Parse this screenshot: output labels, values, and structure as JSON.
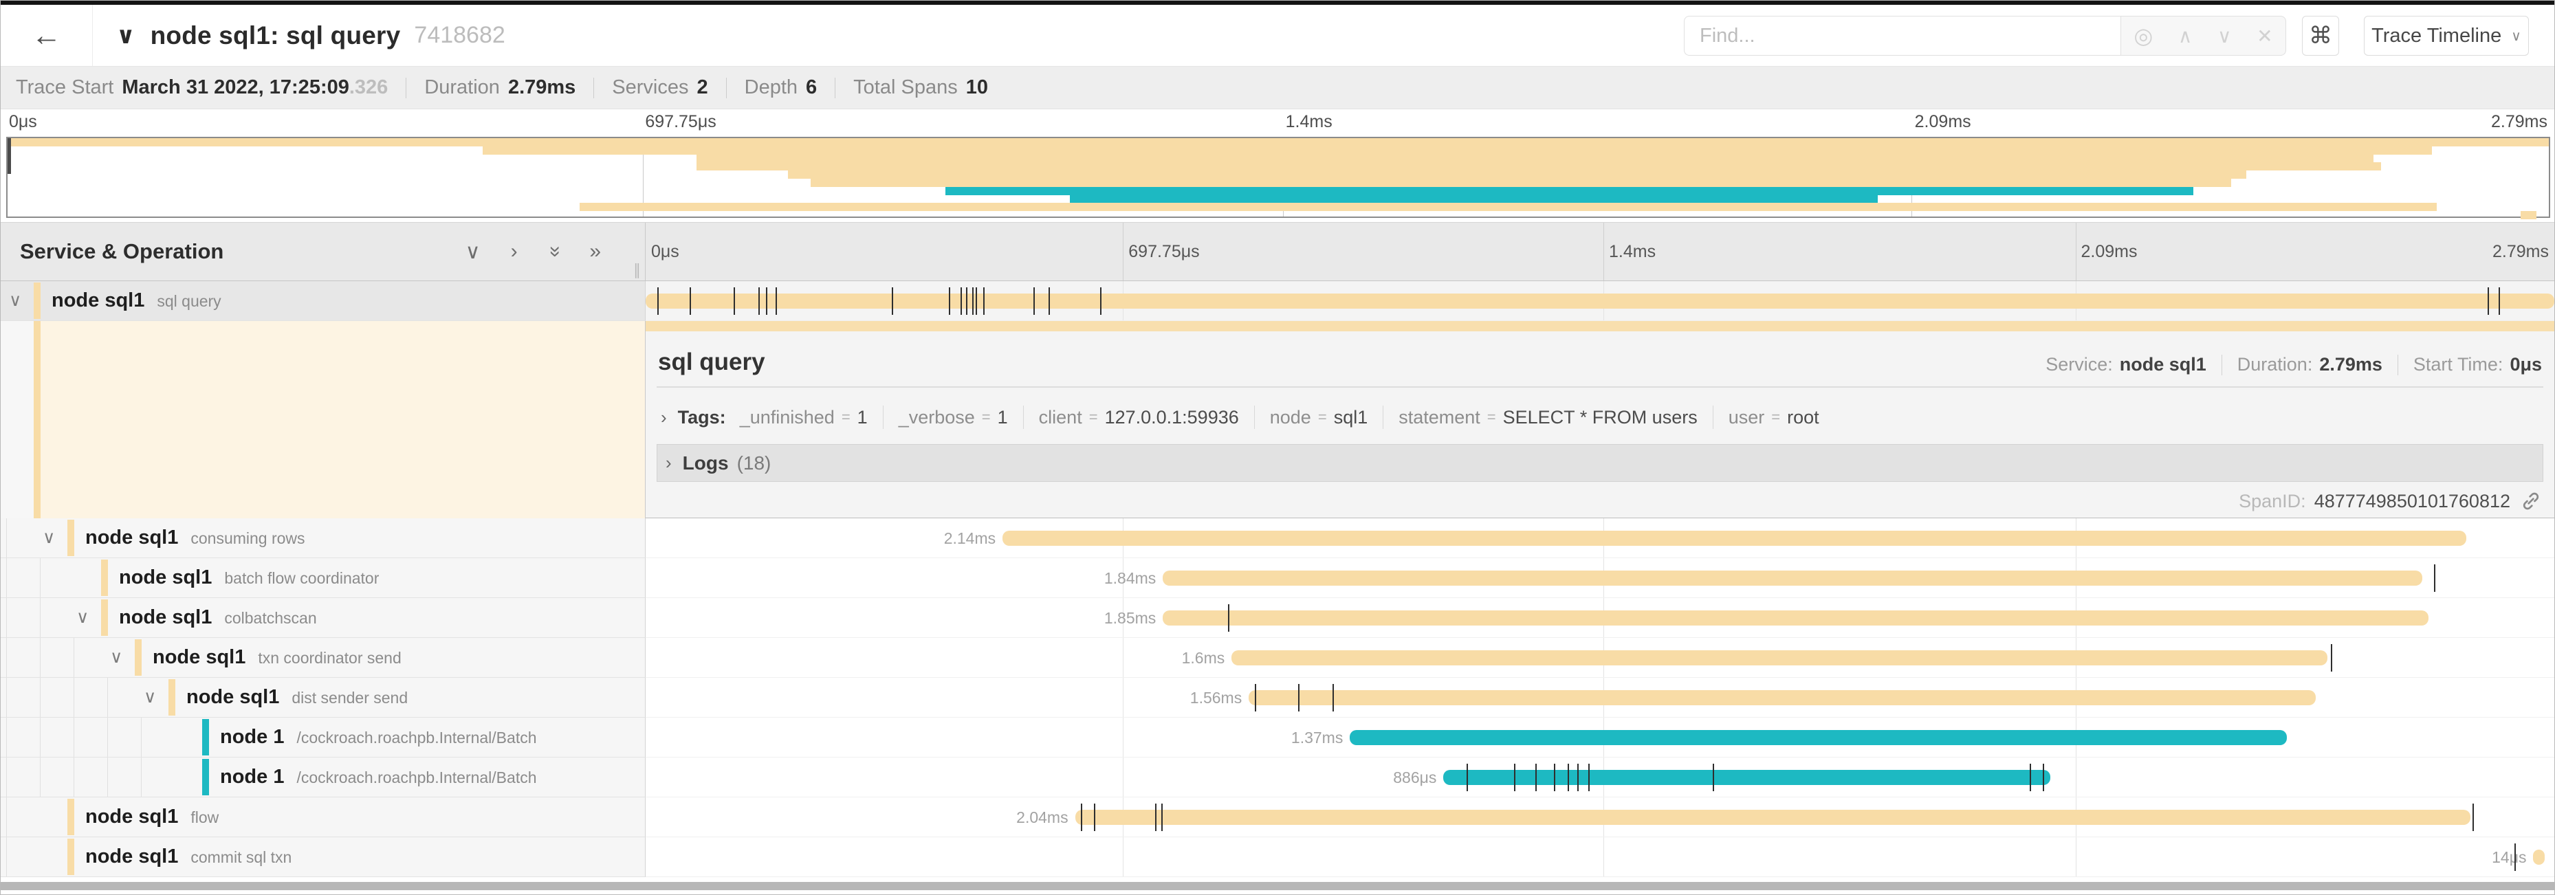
{
  "colors": {
    "tan": "#f8dca6",
    "tan_light": "#f8dfae",
    "teal": "#1db9c2",
    "cream": "#fdf4e3"
  },
  "header": {
    "back_icon": "←",
    "title_chevron": "∨",
    "title": "node sql1: sql query",
    "trace_id": "7418682",
    "find_placeholder": "Find...",
    "find_icons": [
      "◎",
      "∧",
      "∨",
      "✕"
    ],
    "shortcut_label": "⌘",
    "view_button": "Trace Timeline",
    "view_button_chevron": "∨"
  },
  "trace_info": {
    "items": [
      {
        "label": "Trace Start",
        "value": "March 31 2022, 17:25:09",
        "suffix": ".326"
      },
      {
        "label": "Duration",
        "value": "2.79ms"
      },
      {
        "label": "Services",
        "value": "2"
      },
      {
        "label": "Depth",
        "value": "6"
      },
      {
        "label": "Total Spans",
        "value": "10"
      }
    ]
  },
  "timeline": {
    "section_title": "Service & Operation",
    "collapse_icons": [
      "∨",
      "›",
      "«",
      "»"
    ],
    "ruler": [
      {
        "pct": 0,
        "label": "0μs",
        "align": "left"
      },
      {
        "pct": 25.01,
        "label": "697.75μs",
        "align": "left"
      },
      {
        "pct": 50.18,
        "label": "1.4ms",
        "align": "left"
      },
      {
        "pct": 74.91,
        "label": "2.09ms",
        "align": "left"
      },
      {
        "pct": 100,
        "label": "2.79ms",
        "align": "right"
      }
    ],
    "grid_pcts": [
      25.01,
      50.18,
      74.91
    ]
  },
  "spans": [
    {
      "service": "node sql1",
      "operation": "sql query",
      "depth": 0,
      "color": "tan",
      "selected": true,
      "has_children": true,
      "bar_start_pct": 0,
      "bar_end_pct": 100,
      "duration_label": "",
      "log_tick_pcts": [
        0.6,
        2.3,
        4.6,
        5.9,
        6.3,
        6.8,
        12.9,
        15.9,
        16.5,
        16.8,
        17.1,
        17.3,
        17.7,
        20.3,
        21.1,
        23.8,
        96.5,
        97.1
      ]
    },
    {
      "service": "node sql1",
      "operation": "consuming rows",
      "depth": 1,
      "color": "tan",
      "selected": false,
      "has_children": true,
      "bar_start_pct": 18.7,
      "bar_end_pct": 95.4,
      "duration_label": "2.14ms",
      "log_tick_pcts": []
    },
    {
      "service": "node sql1",
      "operation": "batch flow coordinator",
      "depth": 2,
      "color": "tan",
      "selected": false,
      "has_children": false,
      "bar_start_pct": 27.1,
      "bar_end_pct": 93.1,
      "duration_label": "1.84ms",
      "log_tick_pcts": [
        93.7
      ]
    },
    {
      "service": "node sql1",
      "operation": "colbatchscan",
      "depth": 2,
      "color": "tan",
      "selected": false,
      "has_children": true,
      "bar_start_pct": 27.1,
      "bar_end_pct": 93.4,
      "duration_label": "1.85ms",
      "log_tick_pcts": [
        30.5
      ]
    },
    {
      "service": "node sql1",
      "operation": "txn coordinator send",
      "depth": 3,
      "color": "tan",
      "selected": false,
      "has_children": true,
      "bar_start_pct": 30.7,
      "bar_end_pct": 88.1,
      "duration_label": "1.6ms",
      "log_tick_pcts": [
        88.3
      ]
    },
    {
      "service": "node sql1",
      "operation": "dist sender send",
      "depth": 4,
      "color": "tan",
      "selected": false,
      "has_children": true,
      "bar_start_pct": 31.6,
      "bar_end_pct": 87.5,
      "duration_label": "1.56ms",
      "log_tick_pcts": [
        31.9,
        34.2,
        36.0
      ]
    },
    {
      "service": "node 1",
      "operation": "/cockroach.roachpb.Internal/Batch",
      "depth": 5,
      "color": "teal",
      "selected": false,
      "has_children": false,
      "bar_start_pct": 36.9,
      "bar_end_pct": 86.0,
      "duration_label": "1.37ms",
      "log_tick_pcts": []
    },
    {
      "service": "node 1",
      "operation": "/cockroach.roachpb.Internal/Batch",
      "depth": 5,
      "color": "teal",
      "selected": false,
      "has_children": false,
      "bar_start_pct": 41.8,
      "bar_end_pct": 73.6,
      "duration_label": "886μs",
      "log_tick_pcts": [
        43.0,
        45.5,
        46.6,
        47.6,
        48.3,
        48.8,
        49.4,
        55.9,
        72.5,
        73.2
      ]
    },
    {
      "service": "node sql1",
      "operation": "flow",
      "depth": 1,
      "color": "tan",
      "selected": false,
      "has_children": false,
      "bar_start_pct": 22.5,
      "bar_end_pct": 95.6,
      "duration_label": "2.04ms",
      "log_tick_pcts": [
        22.8,
        23.5,
        26.7,
        27.0,
        95.7
      ]
    },
    {
      "service": "node sql1",
      "operation": "commit sql txn",
      "depth": 1,
      "color": "tan",
      "selected": false,
      "has_children": false,
      "bar_start_pct": 98.9,
      "bar_end_pct": 99.5,
      "duration_label": "14μs",
      "log_tick_pcts": [
        97.9
      ]
    }
  ],
  "detail": {
    "title": "sql query",
    "meta": [
      {
        "label": "Service:",
        "value": "node sql1"
      },
      {
        "label": "Duration:",
        "value": "2.79ms"
      },
      {
        "label": "Start Time:",
        "value": "0μs"
      }
    ],
    "tags_chevron": "›",
    "tags_label": "Tags:",
    "tags": [
      {
        "key": "_unfinished",
        "value": "1"
      },
      {
        "key": "_verbose",
        "value": "1"
      },
      {
        "key": "client",
        "value": "127.0.0.1:59936"
      },
      {
        "key": "node",
        "value": "sql1"
      },
      {
        "key": "statement",
        "value": "SELECT * FROM users"
      },
      {
        "key": "user",
        "value": "root"
      }
    ],
    "logs_chevron": "›",
    "logs_label": "Logs",
    "logs_count": "(18)",
    "spanid_label": "SpanID:",
    "spanid_value": "4877749850101760812"
  }
}
